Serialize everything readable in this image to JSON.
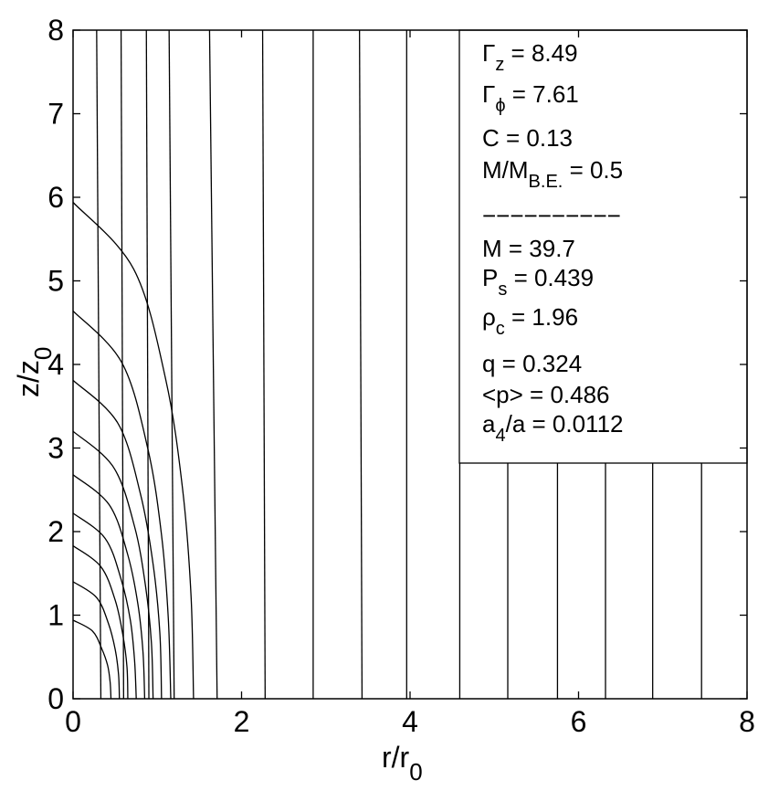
{
  "chart_data": {
    "type": "line",
    "xlabel": {
      "main": "r/r",
      "sub": "0"
    },
    "ylabel": {
      "main": "z/z",
      "sub": "0"
    },
    "xlim": [
      0,
      8
    ],
    "ylim": [
      0,
      8
    ],
    "xticks": [
      0,
      2,
      4,
      6,
      8
    ],
    "yticks": [
      0,
      1,
      2,
      3,
      4,
      5,
      6,
      7,
      8
    ],
    "color": "#000000",
    "series": [
      {
        "x": [
          0,
          0.23,
          0.34,
          0.41,
          0.44,
          0.45
        ],
        "y": [
          0.94,
          0.81,
          0.6,
          0.4,
          0.2,
          0
        ]
      },
      {
        "x": [
          0,
          0.28,
          0.42,
          0.5,
          0.54,
          0.55
        ],
        "y": [
          1.4,
          1.21,
          0.9,
          0.59,
          0.29,
          0
        ]
      },
      {
        "x": [
          0,
          0.33,
          0.5,
          0.59,
          0.64,
          0.65
        ],
        "y": [
          1.83,
          1.58,
          1.18,
          0.77,
          0.38,
          0
        ]
      },
      {
        "x": [
          0,
          0.38,
          0.57,
          0.68,
          0.73,
          0.75
        ],
        "y": [
          2.22,
          1.92,
          1.43,
          0.94,
          0.46,
          0
        ]
      },
      {
        "x": [
          0,
          0.43,
          0.65,
          0.77,
          0.83,
          0.85
        ],
        "y": [
          2.68,
          2.32,
          1.72,
          1.13,
          0.56,
          0
        ]
      },
      {
        "x": [
          0,
          0.48,
          0.73,
          0.86,
          0.93,
          0.95
        ],
        "y": [
          3.2,
          2.77,
          2.06,
          1.35,
          0.67,
          0
        ]
      },
      {
        "x": [
          0,
          0.53,
          0.8,
          0.95,
          1.03,
          1.05
        ],
        "y": [
          3.81,
          3.3,
          2.45,
          1.61,
          0.79,
          0
        ]
      },
      {
        "x": [
          0,
          0.58,
          0.89,
          1.05,
          1.13,
          1.16
        ],
        "y": [
          4.64,
          4.02,
          2.98,
          1.96,
          0.97,
          0
        ]
      },
      {
        "x": [
          0,
          0.72,
          1.1,
          1.3,
          1.4,
          1.43
        ],
        "y": [
          5.94,
          5.14,
          3.82,
          2.51,
          1.24,
          0
        ]
      },
      {
        "x": [
          0.28,
          0.33
        ],
        "y": [
          8,
          0
        ]
      },
      {
        "x": [
          0.57,
          0.6
        ],
        "y": [
          8,
          0
        ]
      },
      {
        "x": [
          0.87,
          0.9
        ],
        "y": [
          8,
          0
        ]
      },
      {
        "x": [
          1.14,
          1.2
        ],
        "y": [
          8,
          0
        ]
      },
      {
        "x": [
          1.62,
          1.71
        ],
        "y": [
          8,
          0
        ]
      },
      {
        "x": [
          2.25,
          2.28
        ],
        "y": [
          8,
          0
        ]
      },
      {
        "x": [
          2.85,
          2.85
        ],
        "y": [
          8,
          0
        ]
      },
      {
        "x": [
          3.4,
          3.43
        ],
        "y": [
          8,
          0
        ]
      },
      {
        "x": [
          3.96,
          3.96
        ],
        "y": [
          8,
          0
        ]
      },
      {
        "x": [
          4.59,
          4.59
        ],
        "y": [
          8,
          0
        ]
      },
      {
        "x": [
          5.16,
          5.16
        ],
        "y": [
          8,
          0
        ]
      },
      {
        "x": [
          5.75,
          5.75
        ],
        "y": [
          8,
          0
        ]
      },
      {
        "x": [
          6.32,
          6.32
        ],
        "y": [
          8,
          0
        ]
      },
      {
        "x": [
          6.88,
          6.88
        ],
        "y": [
          8,
          0
        ]
      },
      {
        "x": [
          7.46,
          7.46
        ],
        "y": [
          8,
          0
        ]
      }
    ],
    "annotations": [
      {
        "main": "Γ",
        "sub": "z",
        "tail": " = 8.49"
      },
      {
        "main": "Γ",
        "sub": "ϕ",
        "tail": " = 7.61"
      },
      {
        "main": "C = 0.13"
      },
      {
        "main": "M/M",
        "sub": "B.E.",
        "tail": " = 0.5"
      },
      {
        "main": "−−−−−−−−−−"
      },
      {
        "main": "M = 39.7"
      },
      {
        "main": "P",
        "sub": "s",
        "tail": " = 0.439"
      },
      {
        "main": "ρ",
        "sub": "c",
        "tail": " = 1.96"
      },
      {
        "main": "q = 0.324"
      },
      {
        "main": "<p> = 0.486"
      },
      {
        "main": "a",
        "sub": "4",
        "tail": "/a = 0.0112"
      }
    ]
  }
}
